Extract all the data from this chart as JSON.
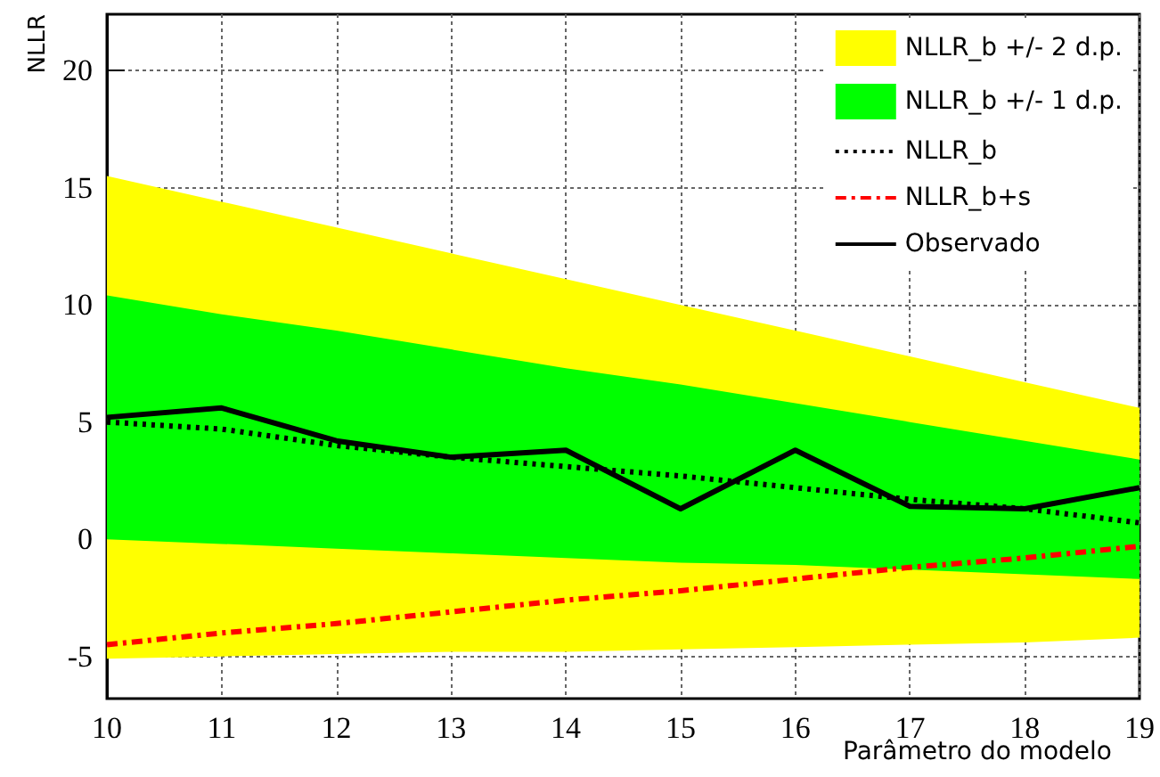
{
  "chart_data": {
    "type": "line",
    "xlabel": "Parâmetro do modelo",
    "ylabel": "NLLR",
    "x": [
      10,
      11,
      12,
      13,
      14,
      15,
      16,
      17,
      18,
      19
    ],
    "series": [
      {
        "type": "area",
        "name": "NLLR_b +/- 2 d.p.",
        "color": "#ffff00",
        "values": [
          null,
          null,
          null,
          null,
          null,
          null,
          null,
          null,
          null,
          null
        ],
        "lower": [
          -5.1,
          -5.0,
          -4.9,
          -4.8,
          -4.8,
          -4.7,
          -4.6,
          -4.5,
          -4.4,
          -4.2
        ],
        "upper": [
          15.5,
          14.4,
          13.3,
          12.2,
          11.1,
          10.0,
          8.9,
          7.8,
          6.7,
          5.6
        ]
      },
      {
        "type": "area",
        "name": "NLLR_b +/- 1 d.p.",
        "color": "#00ff00",
        "values": [
          null,
          null,
          null,
          null,
          null,
          null,
          null,
          null,
          null,
          null
        ],
        "lower": [
          0.0,
          -0.2,
          -0.4,
          -0.6,
          -0.8,
          -1.0,
          -1.1,
          -1.3,
          -1.5,
          -1.7
        ],
        "upper": [
          10.4,
          9.6,
          8.9,
          8.1,
          7.3,
          6.6,
          5.8,
          5.0,
          4.2,
          3.4
        ]
      },
      {
        "name": "NLLR_b",
        "color": "#000000",
        "line_style": "dotted",
        "values": [
          5.0,
          4.7,
          4.0,
          3.5,
          3.1,
          2.7,
          2.2,
          1.7,
          1.3,
          0.7
        ]
      },
      {
        "name": "NLLR_b+s",
        "color": "#ff0000",
        "line_style": "dashed",
        "values": [
          -4.5,
          -4.0,
          -3.6,
          -3.1,
          -2.6,
          -2.2,
          -1.7,
          -1.2,
          -0.8,
          -0.3
        ]
      },
      {
        "name": "Observado",
        "color": "#000000",
        "line_style": "solid",
        "values": [
          5.2,
          5.6,
          4.2,
          3.5,
          3.8,
          1.3,
          3.8,
          1.4,
          1.3,
          2.2
        ]
      }
    ],
    "xlim": [
      10,
      19
    ],
    "xticks": [
      10,
      11,
      12,
      13,
      14,
      15,
      16,
      17,
      18,
      19
    ],
    "ylim": [
      -6.8,
      22.4
    ],
    "yticks": [
      -5,
      0,
      5,
      10,
      15,
      20
    ],
    "grid": true,
    "legend": "top right",
    "marker": "none"
  }
}
